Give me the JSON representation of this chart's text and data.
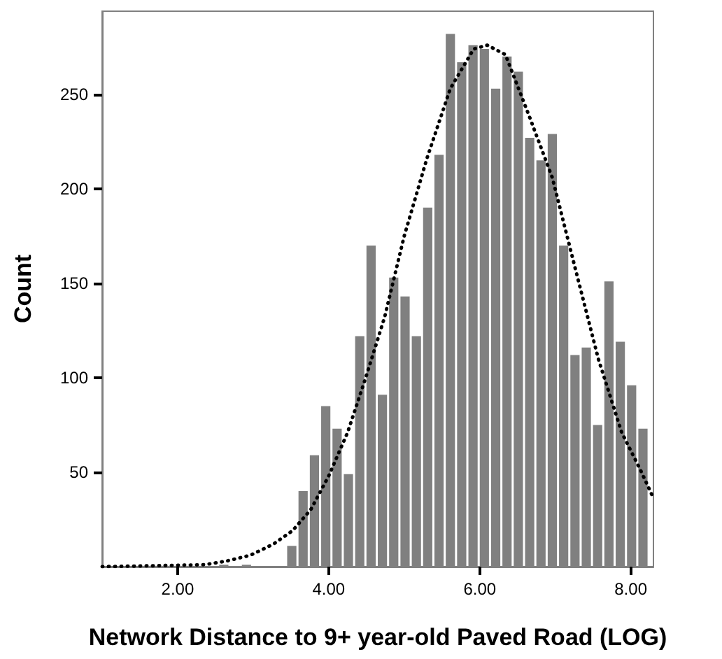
{
  "chart_data": {
    "type": "histogram",
    "xlabel": "Network Distance to 9+ year-old Paved Road (LOG)",
    "ylabel": "Count",
    "bins": [
      2.55,
      2.7,
      2.85,
      3.0,
      3.15,
      3.3,
      3.45,
      3.6,
      3.75,
      3.9,
      4.05,
      4.2,
      4.35,
      4.5,
      4.65,
      4.8,
      4.95,
      5.1,
      5.25,
      5.4,
      5.55,
      5.7,
      5.85,
      6.0,
      6.15,
      6.3,
      6.45,
      6.6,
      6.75,
      6.9,
      7.05,
      7.2,
      7.35,
      7.5,
      7.65,
      7.8,
      7.95,
      8.1,
      8.25
    ],
    "values": [
      1,
      0,
      1,
      0,
      0,
      0,
      11,
      40,
      59,
      85,
      73,
      49,
      122,
      170,
      91,
      153,
      143,
      122,
      190,
      218,
      282,
      267,
      276,
      274,
      253,
      270,
      262,
      227,
      215,
      229,
      170,
      112,
      116,
      75,
      151,
      119,
      96,
      73
    ],
    "color": "#808080",
    "series": [
      {
        "type": "line",
        "color": "#000000",
        "line_style": "dotted",
        "x": [
          1.0,
          2.35,
          2.65,
          2.96,
          3.27,
          3.52,
          3.76,
          4.0,
          4.25,
          4.49,
          4.74,
          5.0,
          5.3,
          5.61,
          5.92,
          6.1,
          6.34,
          6.65,
          6.96,
          7.27,
          7.57,
          7.88,
          8.13,
          8.28
        ],
        "values": [
          0,
          1,
          3,
          6,
          12,
          19,
          30,
          48,
          71,
          100,
          132,
          175,
          216,
          253,
          274,
          276,
          271,
          239,
          206,
          157,
          110,
          71,
          51,
          38
        ]
      }
    ],
    "xlim": [
      1.0,
      8.3
    ],
    "ylim": [
      0,
      294
    ],
    "xticks": [
      {
        "value": 2,
        "label": "2.00"
      },
      {
        "value": 4,
        "label": "4.00"
      },
      {
        "value": 6,
        "label": "6.00"
      },
      {
        "value": 8,
        "label": "8.00"
      }
    ],
    "yticks": [
      50,
      100,
      150,
      200,
      250
    ],
    "grid": false
  }
}
